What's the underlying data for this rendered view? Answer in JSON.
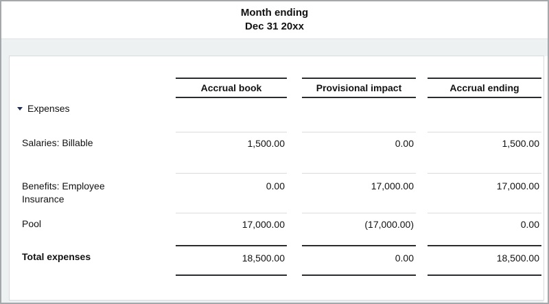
{
  "header": {
    "title_line1": "Month ending",
    "title_line2": "Dec 31 20xx"
  },
  "report": {
    "columns": [
      "Accrual book",
      "Provisional impact",
      "Accrual ending"
    ],
    "section": {
      "label": "Expenses",
      "state": "expanded",
      "disclosure_icon": "triangle-down-icon"
    },
    "rows": [
      {
        "label": "Salaries: Billable",
        "values": [
          "1,500.00",
          "0.00",
          "1,500.00"
        ]
      },
      {
        "label": "Benefits: Employee Insurance",
        "values": [
          "0.00",
          "17,000.00",
          "17,000.00"
        ]
      },
      {
        "label": "Pool",
        "values": [
          "17,000.00",
          "(17,000.00)",
          "0.00"
        ]
      }
    ],
    "total": {
      "label": "Total expenses",
      "values": [
        "18,500.00",
        "0.00",
        "18,500.00"
      ]
    }
  },
  "colors": {
    "body_background": "#eef1f2",
    "card_background": "#ffffff",
    "card_border": "#d5dce0",
    "rule_dark": "#2a2b2d",
    "rule_light": "#d9dbdc",
    "disclosure_triangle": "#1f2d54",
    "text": "#111111"
  }
}
